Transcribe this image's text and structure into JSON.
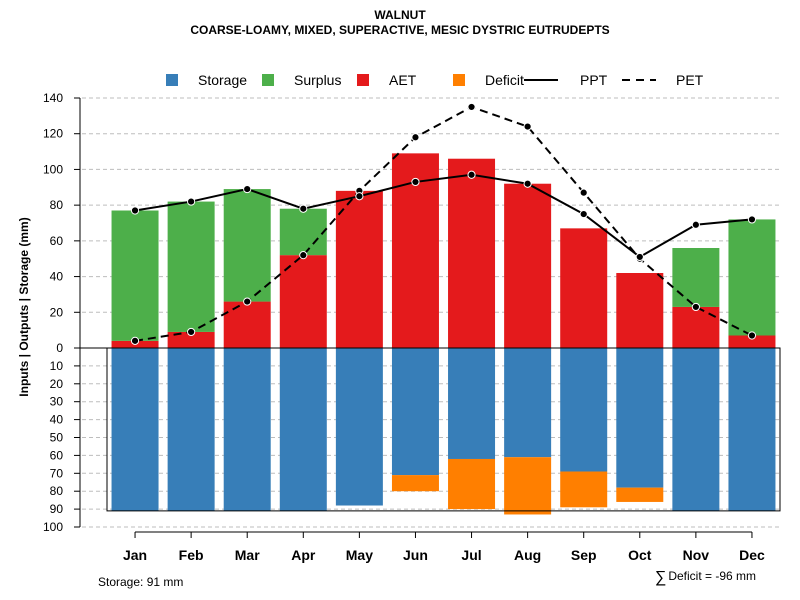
{
  "title": {
    "line1": "WALNUT",
    "line2": "COARSE-LOAMY, MIXED, SUPERACTIVE, MESIC DYSTRIC EUTRUDEPTS"
  },
  "footer": {
    "storage_text": "Storage: 91 mm",
    "deficit_symbol": "∑",
    "deficit_text": "Deficit = -96 mm"
  },
  "chart_data": {
    "type": "bar",
    "title": "WALNUT — COARSE-LOAMY, MIXED, SUPERACTIVE, MESIC DYSTRIC EUTRUDEPTS",
    "ylabel": "Inputs | Outputs | Storage    (mm)",
    "categories": [
      "Jan",
      "Feb",
      "Mar",
      "Apr",
      "May",
      "Jun",
      "Jul",
      "Aug",
      "Sep",
      "Oct",
      "Nov",
      "Dec"
    ],
    "upper_ylim": [
      0,
      140
    ],
    "upper_ticks": [
      "0",
      "20",
      "40",
      "60",
      "80",
      "100",
      "120",
      "140"
    ],
    "lower_ylim": [
      0,
      100
    ],
    "lower_ticks": [
      "10",
      "20",
      "30",
      "40",
      "50",
      "60",
      "70",
      "80",
      "90",
      "100"
    ],
    "grid": true,
    "legend_position": "top",
    "legend": [
      {
        "label": "Storage",
        "kind": "box",
        "color": "#377EB8"
      },
      {
        "label": "Surplus",
        "kind": "box",
        "color": "#4DAF4A"
      },
      {
        "label": "AET",
        "kind": "box",
        "color": "#E41A1C"
      },
      {
        "label": "Deficit",
        "kind": "box",
        "color": "#FF7F00"
      },
      {
        "label": "PPT",
        "kind": "solid"
      },
      {
        "label": "PET",
        "kind": "dashed"
      }
    ],
    "series": [
      {
        "name": "AET",
        "color": "#E41A1C",
        "values": [
          4,
          9,
          26,
          52,
          88,
          109,
          106,
          92,
          67,
          42,
          23,
          7
        ]
      },
      {
        "name": "Surplus",
        "color": "#4DAF4A",
        "values": [
          73,
          73,
          63,
          26,
          0,
          0,
          0,
          0,
          0,
          0,
          33,
          65
        ]
      },
      {
        "name": "Storage",
        "color": "#377EB8",
        "values": [
          91,
          91,
          91,
          91,
          88,
          71,
          62,
          61,
          69,
          78,
          91,
          91
        ]
      },
      {
        "name": "Deficit",
        "color": "#FF7F00",
        "values": [
          0,
          0,
          0,
          0,
          0,
          9,
          28,
          32,
          20,
          8,
          0,
          0
        ]
      },
      {
        "name": "PPT",
        "values": [
          77,
          82,
          89,
          78,
          85,
          93,
          97,
          92,
          75,
          51,
          69,
          72
        ]
      },
      {
        "name": "PET",
        "values": [
          4,
          9,
          26,
          52,
          88,
          118,
          135,
          124,
          87,
          50,
          23,
          7
        ]
      }
    ]
  }
}
